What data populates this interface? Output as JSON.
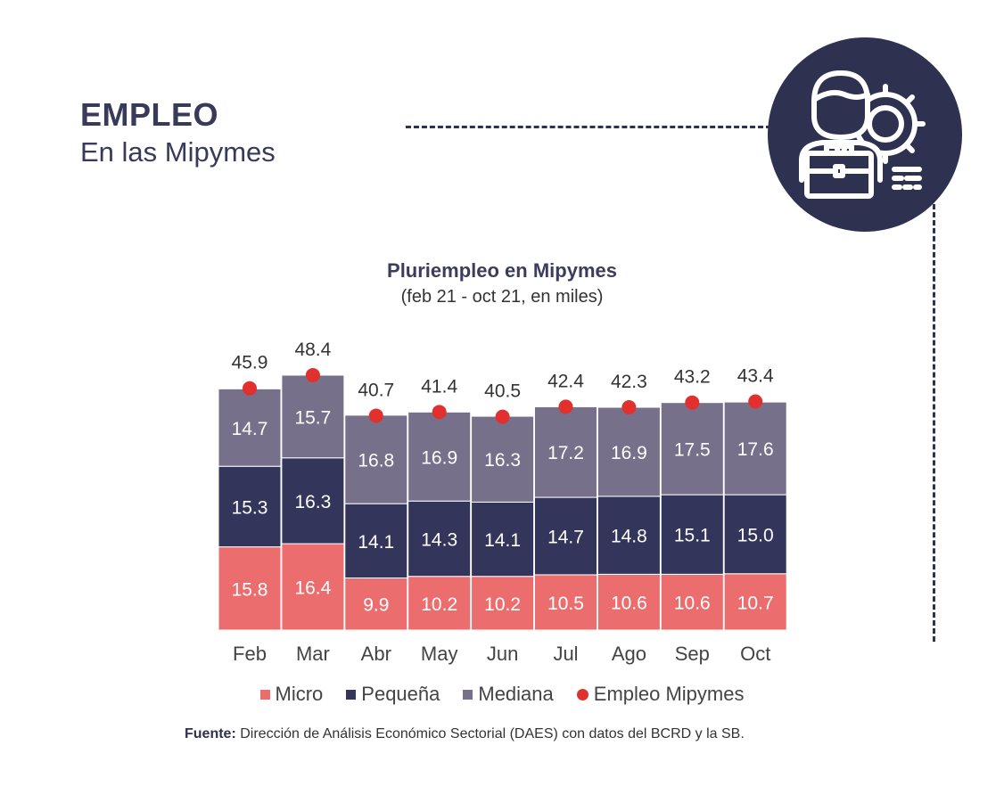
{
  "heading": {
    "title": "EMPLEO",
    "subtitle": "En las Mipymes"
  },
  "icon": "businessman-gear-icon",
  "colors": {
    "micro": "#ec6d6e",
    "pequena": "#33355a",
    "mediana": "#76708b",
    "empleo": "#e2302e",
    "dark": "#2e3150"
  },
  "legend": {
    "micro": "Micro",
    "pequena": "Pequeña",
    "mediana": "Mediana",
    "empleo": "Empleo Mipymes"
  },
  "source": {
    "label": "Fuente:",
    "text": " Dirección de Análisis Económico Sectorial (DAES) con datos del BCRD y la SB."
  },
  "chart_data": {
    "type": "bar",
    "stacked": true,
    "title": "Pluriempleo en Mipymes",
    "subtitle": "(feb 21 - oct 21, en miles)",
    "categories": [
      "Feb",
      "Mar",
      "Abr",
      "May",
      "Jun",
      "Jul",
      "Ago",
      "Sep",
      "Oct"
    ],
    "series": [
      {
        "name": "Micro",
        "values": [
          15.8,
          16.4,
          9.9,
          10.2,
          10.2,
          10.5,
          10.6,
          10.6,
          10.7
        ]
      },
      {
        "name": "Pequeña",
        "values": [
          15.3,
          16.3,
          14.1,
          14.3,
          14.1,
          14.7,
          14.8,
          15.1,
          15.0
        ]
      },
      {
        "name": "Mediana",
        "values": [
          14.7,
          15.7,
          16.8,
          16.9,
          16.3,
          17.2,
          16.9,
          17.5,
          17.6
        ]
      }
    ],
    "totals": {
      "name": "Empleo Mipymes",
      "values": [
        45.9,
        48.4,
        40.7,
        41.4,
        40.5,
        42.4,
        42.3,
        43.2,
        43.4
      ],
      "labels": [
        "45.9",
        "48.4",
        "40.7",
        "41.4",
        "40.5",
        "42.4",
        "42.3",
        "43.2",
        "43.4"
      ]
    },
    "ylim": [
      0,
      50
    ],
    "grid": false,
    "legend_position": "bottom"
  }
}
